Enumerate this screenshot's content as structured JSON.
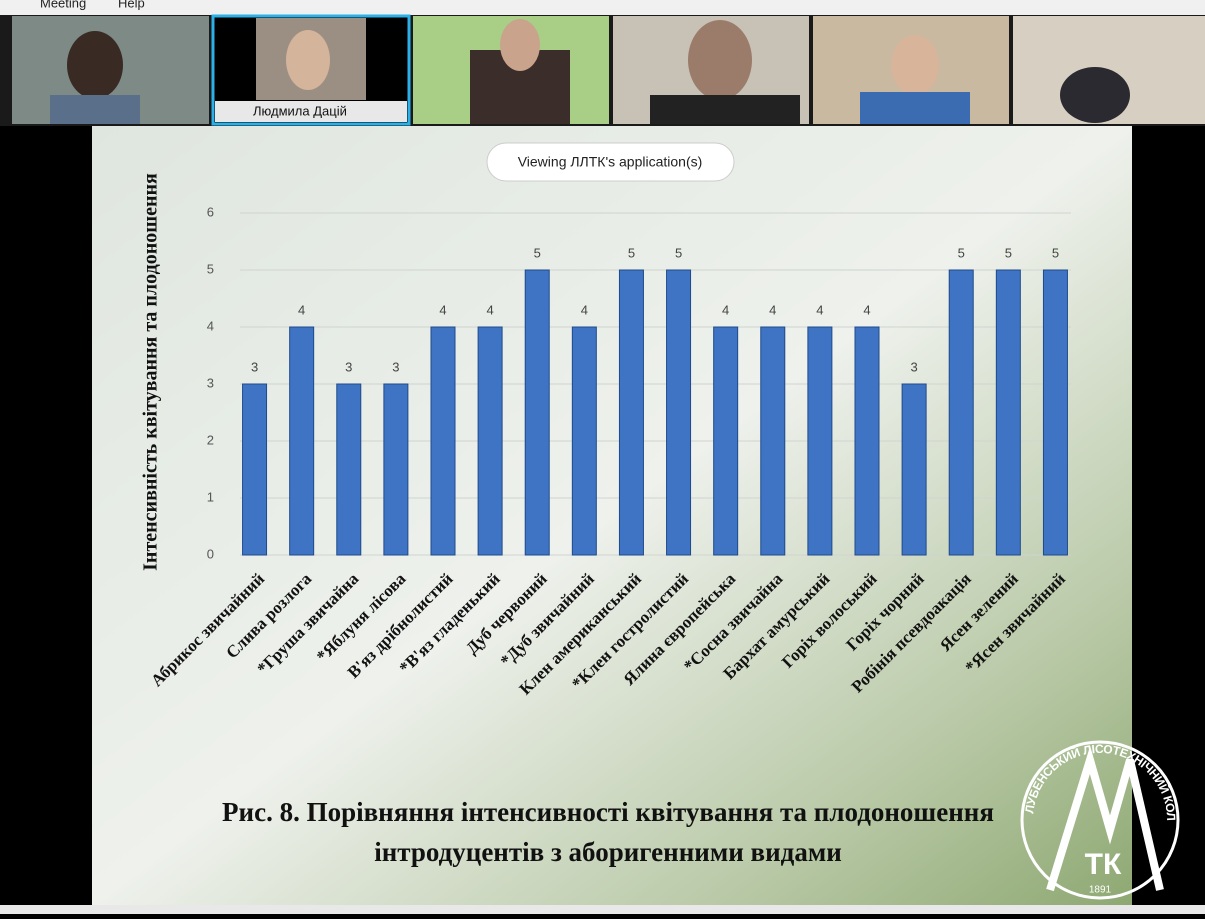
{
  "menu": [
    "Meeting",
    "Help"
  ],
  "participant_name": "Людмила Дацій",
  "banner": "Viewing ЛЛТК's application(s)",
  "chart_data": {
    "type": "bar",
    "y_label": "Інтенсивність квітування та плодоношення",
    "caption": [
      "Рис. 8. Порівняння інтенсивності квітування та плодоношення",
      "інтродуцентів з аборигенними видами"
    ],
    "categories": [
      "Абрикос звичайний",
      "Слива розлога",
      "*Груша звичайна",
      "*Яблуня лісова",
      "В'яз дрібнолистий",
      "*В'яз гладенький",
      "Дуб червоний",
      "*Дуб звичайний",
      "Клен американський",
      "*Клен гостролистий",
      "Ялина європейська",
      "*Сосна звичайна",
      "Бархат амурський",
      "Горіх волоський",
      "Горіх чорний",
      "Робінія псевдоакація",
      "Ясен зелений",
      "*Ясен звичайний"
    ],
    "values": [
      3,
      4,
      3,
      3,
      4,
      4,
      5,
      4,
      5,
      5,
      4,
      4,
      4,
      4,
      3,
      5,
      5,
      5
    ],
    "color": "#3f74c4",
    "ylim": [
      0,
      6
    ],
    "yticks": [
      0,
      1,
      2,
      3,
      4,
      5,
      6
    ],
    "grid": true
  },
  "logo": {
    "ring": "ЛУБЕНСЬКИЙ ЛІСОТЕХНІЧНИЙ КОЛЕДЖ",
    "mark": "ТК",
    "year": "1891"
  }
}
